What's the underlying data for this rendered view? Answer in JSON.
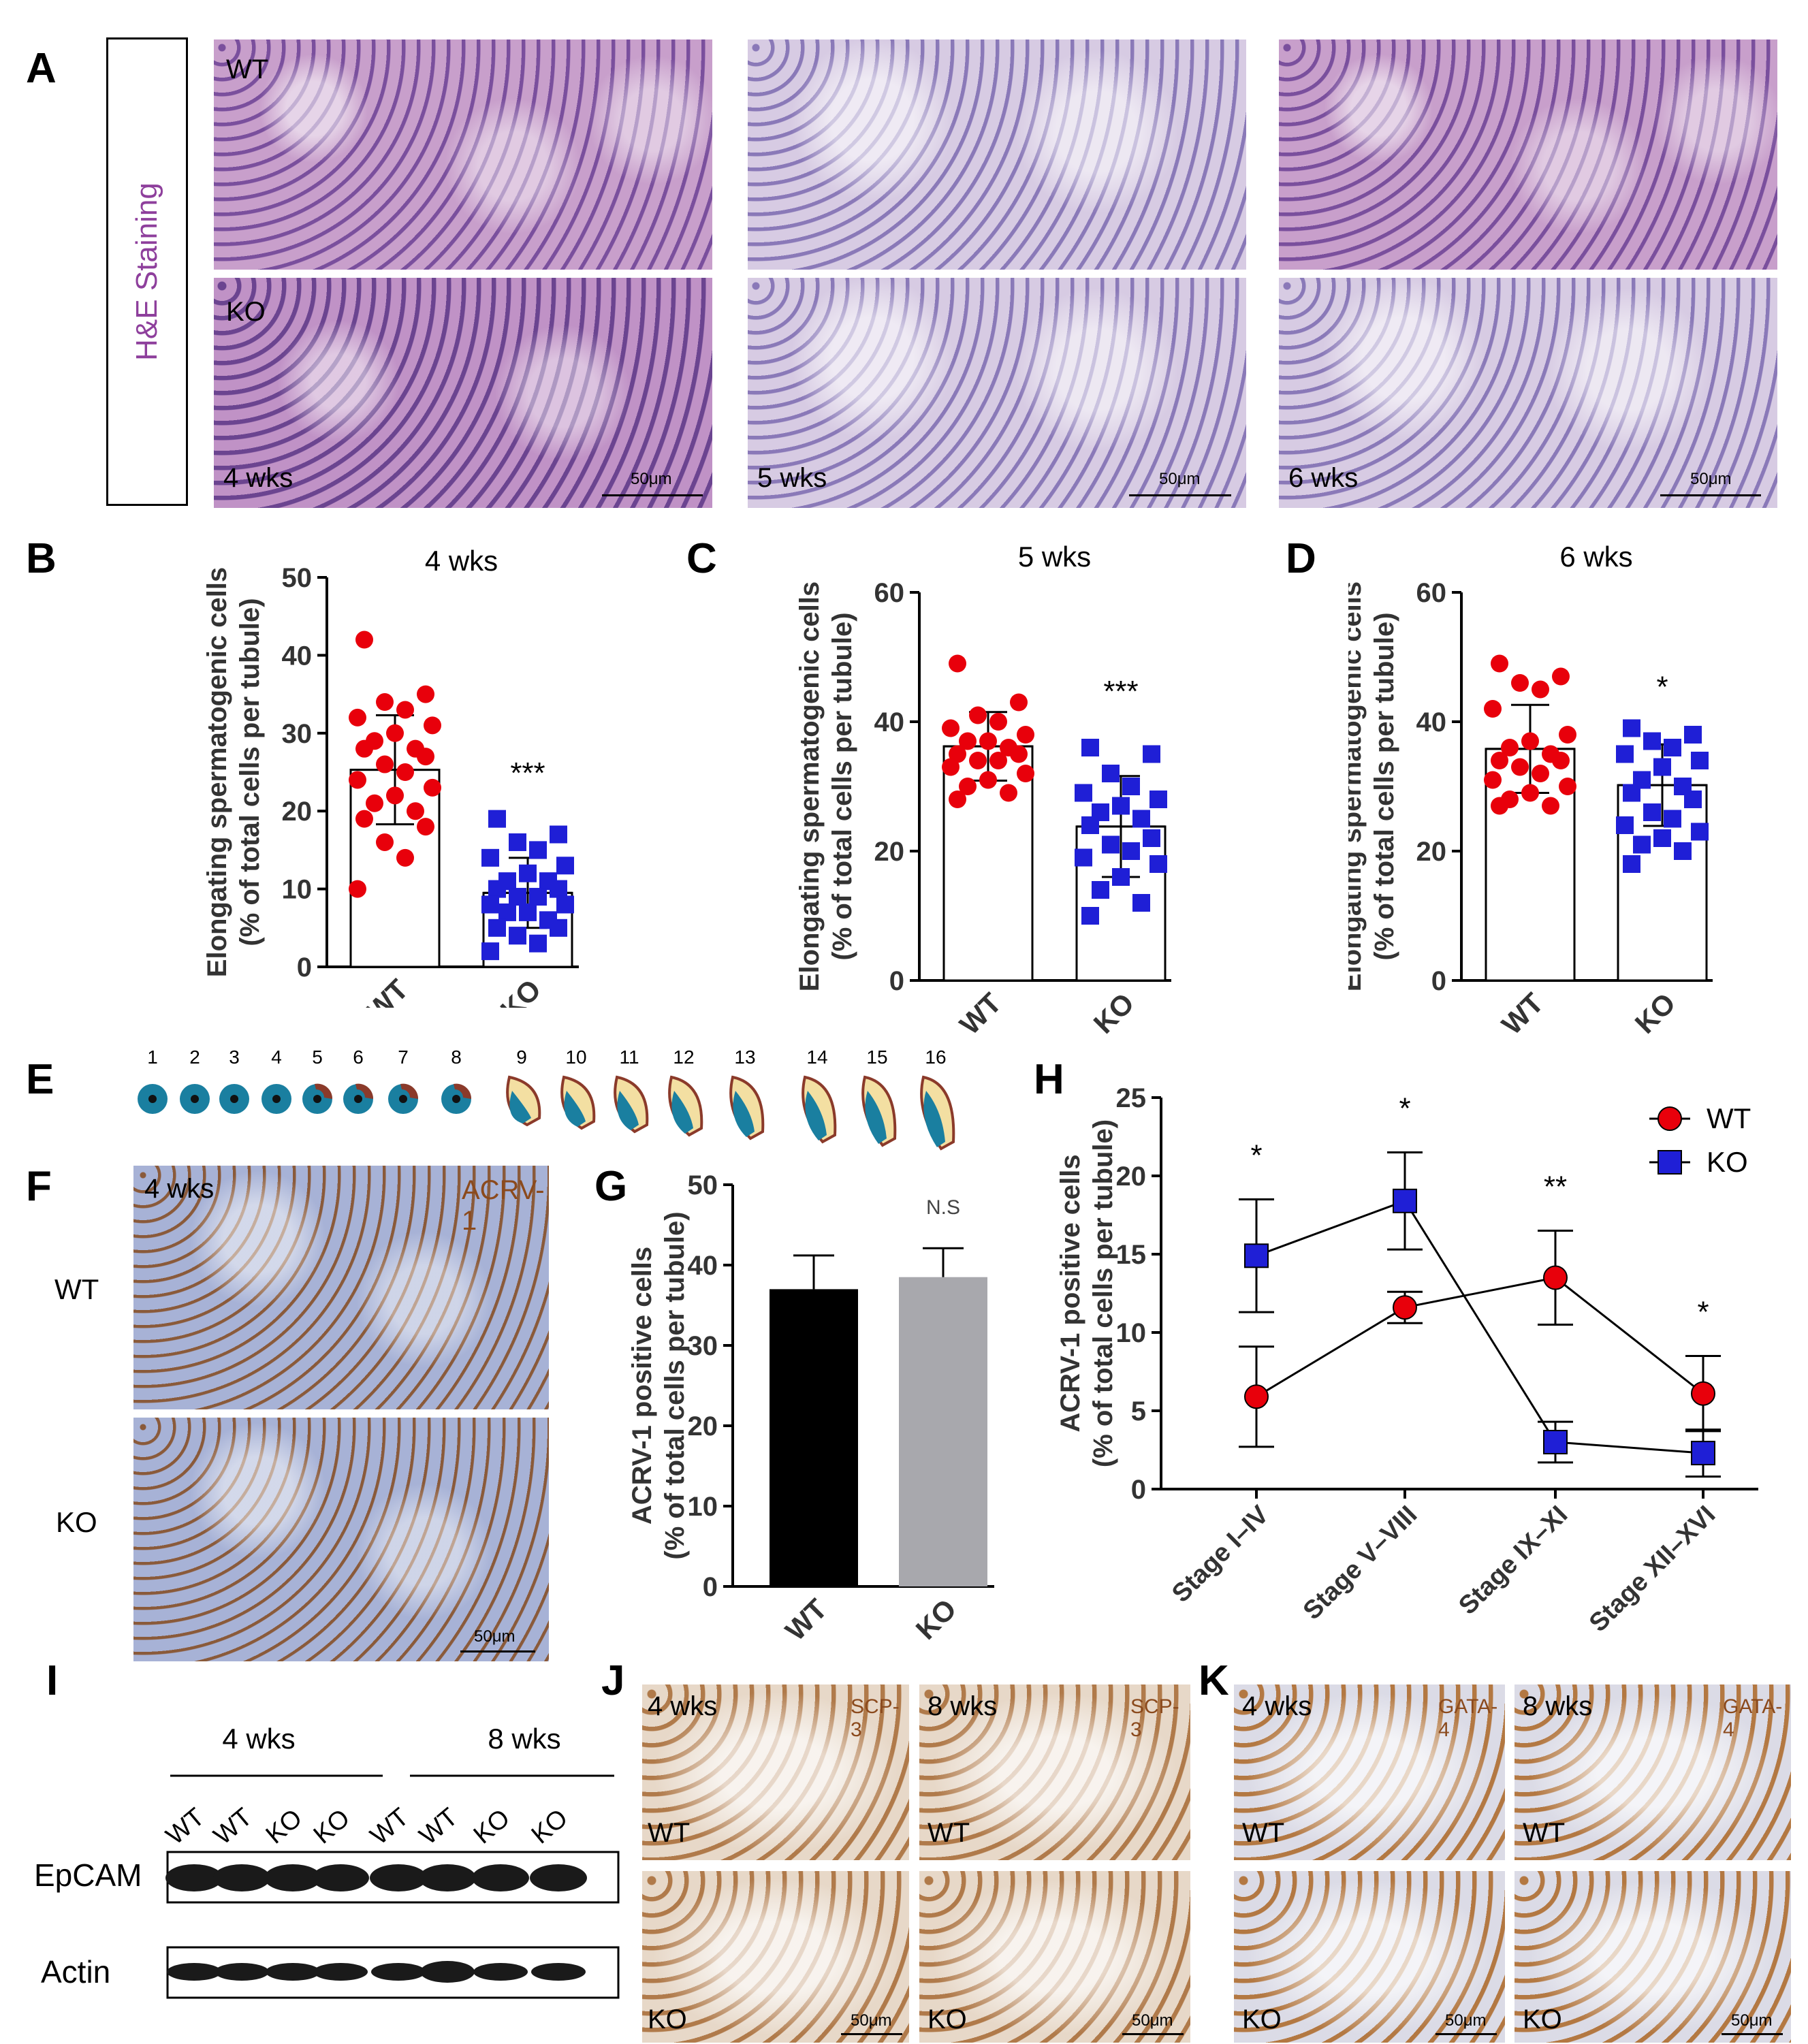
{
  "panels": {
    "A": "A",
    "B": "B",
    "C": "C",
    "D": "D",
    "E": "E",
    "F": "F",
    "G": "G",
    "H": "H",
    "I": "I",
    "J": "J",
    "K": "K"
  },
  "panel_a": {
    "side_label": "H&E Staining",
    "row_wt": "WT",
    "row_ko": "KO",
    "ages": [
      "4 wks",
      "5 wks",
      "6 wks"
    ],
    "scale": "50μm"
  },
  "panel_e": {
    "steps": [
      "1",
      "2",
      "3",
      "4",
      "5",
      "6",
      "7",
      "8",
      "9",
      "10",
      "11",
      "12",
      "13",
      "14",
      "15",
      "16"
    ]
  },
  "panel_f": {
    "age": "4 wks",
    "stain": "ACRV-1",
    "row_wt": "WT",
    "row_ko": "KO",
    "scale": "50μm"
  },
  "panel_i": {
    "ages": [
      "4 wks",
      "8 wks"
    ],
    "lanes": [
      "WT",
      "WT",
      "KO",
      "KO",
      "WT",
      "WT",
      "KO",
      "KO"
    ],
    "bands": [
      "EpCAM",
      "Actin"
    ]
  },
  "panel_j": {
    "stain": "SCP-3",
    "ages": [
      "4 wks",
      "8 wks"
    ],
    "row_wt": "WT",
    "row_ko": "KO",
    "scale": "50μm"
  },
  "panel_k": {
    "stain": "GATA-4",
    "ages": [
      "4 wks",
      "8 wks"
    ],
    "row_wt": "WT",
    "row_ko": "KO",
    "scale": "50μm"
  },
  "colors": {
    "wt_dot": "#e8000b",
    "ko_square": "#1f1fd6",
    "bar_black": "#000000",
    "bar_gray": "#a8a8ad",
    "scatter_label": "#333333",
    "stain_label": "#8b4a1d",
    "side_label": "#8e3f9c"
  },
  "chart_data": [
    {
      "id": "B",
      "type": "scatter",
      "title": "4 wks",
      "ylabel": "Elongating spermatogenic cells\n(% of total cells per tubule)",
      "categories": [
        "WT",
        "KO"
      ],
      "ylim": [
        0,
        50
      ],
      "yticks": [
        0,
        10,
        20,
        30,
        40,
        50
      ],
      "bars": [
        25.3,
        9.5
      ],
      "errors": [
        7.0,
        4.5
      ],
      "significance": "***",
      "series": [
        {
          "name": "WT",
          "values": [
            42,
            35,
            34,
            33,
            32,
            31,
            30,
            29,
            28,
            28,
            27,
            26,
            25,
            24,
            23,
            22,
            21,
            20,
            19,
            18,
            16,
            14,
            10
          ]
        },
        {
          "name": "KO",
          "values": [
            19,
            17,
            16,
            15,
            14,
            13,
            12,
            11,
            11,
            10,
            10,
            9,
            9,
            8,
            8,
            7,
            7,
            6,
            5,
            5,
            4,
            3,
            2
          ]
        }
      ]
    },
    {
      "id": "C",
      "type": "scatter",
      "title": "5 wks",
      "ylabel": "Elongating spermatogenic cells\n(% of total cells per tubule)",
      "categories": [
        "WT",
        "KO"
      ],
      "ylim": [
        0,
        60
      ],
      "yticks": [
        0,
        20,
        40,
        60
      ],
      "bars": [
        36.2,
        23.8
      ],
      "errors": [
        5.3,
        7.8
      ],
      "significance": "***",
      "series": [
        {
          "name": "WT",
          "values": [
            49,
            43,
            41,
            40,
            39,
            38,
            37,
            37,
            36,
            35,
            35,
            34,
            34,
            33,
            32,
            31,
            30,
            29,
            28
          ]
        },
        {
          "name": "KO",
          "values": [
            36,
            35,
            32,
            30,
            29,
            28,
            27,
            26,
            25,
            24,
            22,
            21,
            20,
            19,
            18,
            16,
            14,
            12,
            10
          ]
        }
      ]
    },
    {
      "id": "D",
      "type": "scatter",
      "title": "6 wks",
      "ylabel": "Elongating spermatogenic cells\n(% of total cells per tubule)",
      "categories": [
        "WT",
        "KO"
      ],
      "ylim": [
        0,
        60
      ],
      "yticks": [
        0,
        20,
        40,
        60
      ],
      "bars": [
        35.8,
        30.2
      ],
      "errors": [
        6.8,
        6.3
      ],
      "significance": "*",
      "series": [
        {
          "name": "WT",
          "values": [
            49,
            47,
            46,
            45,
            42,
            38,
            37,
            36,
            35,
            34,
            34,
            33,
            32,
            31,
            30,
            29,
            28,
            27,
            27
          ]
        },
        {
          "name": "KO",
          "values": [
            39,
            38,
            37,
            36,
            35,
            34,
            33,
            31,
            30,
            29,
            28,
            26,
            25,
            24,
            23,
            22,
            21,
            20,
            18
          ]
        }
      ]
    },
    {
      "id": "G",
      "type": "bar",
      "title": "",
      "ylabel": "ACRV-1 positive cells\n(% of total cells per tubule)",
      "categories": [
        "WT",
        "KO"
      ],
      "values": [
        37.0,
        38.5
      ],
      "errors": [
        4.2,
        3.6
      ],
      "ylim": [
        0,
        50
      ],
      "yticks": [
        0,
        10,
        20,
        30,
        40,
        50
      ],
      "significance": "N.S"
    },
    {
      "id": "H",
      "type": "line",
      "title": "",
      "ylabel": "ACRV-1 positive cells\n(% of total cells per tubule)",
      "categories": [
        "Stage I–IV",
        "Stage V–VIII",
        "Stage IX–XI",
        "Stage XII–XVI"
      ],
      "ylim": [
        0,
        25
      ],
      "yticks": [
        0,
        5,
        10,
        15,
        20,
        25
      ],
      "legend_position": "top-right",
      "significance": [
        "*",
        "*",
        "**",
        "*"
      ],
      "series": [
        {
          "name": "WT",
          "values": [
            5.9,
            11.6,
            13.5,
            6.1
          ],
          "errors": [
            3.2,
            1.0,
            3.0,
            2.4
          ]
        },
        {
          "name": "KO",
          "values": [
            14.9,
            18.4,
            3.0,
            2.3
          ],
          "errors": [
            3.6,
            3.1,
            1.3,
            1.5
          ]
        }
      ]
    }
  ]
}
